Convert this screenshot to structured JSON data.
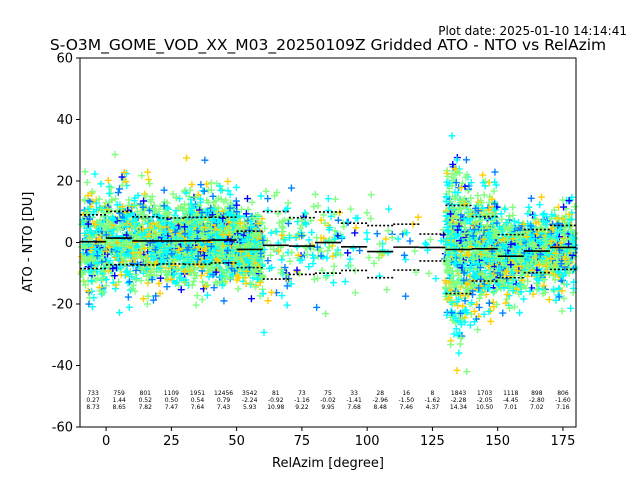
{
  "plot_date": "Plot date: 2025-01-10 14:14:41",
  "chart_data": {
    "type": "scatter",
    "title": "S-O3M_GOME_VOD_XX_M03_20250109Z Gridded ATO - NTO vs RelAzim",
    "xlabel": "RelAzim [degree]",
    "ylabel": "ATO - NTO [DU]",
    "xlim": [
      -10,
      180
    ],
    "ylim": [
      -60,
      60
    ],
    "xticks": [
      0,
      25,
      50,
      75,
      100,
      125,
      150,
      175
    ],
    "yticks": [
      -60,
      -40,
      -20,
      0,
      20,
      40,
      60
    ],
    "grid": false,
    "marker": "+",
    "colors": {
      "dark_blue": "#0000ff",
      "blue": "#0080ff",
      "cyan": "#00ffff",
      "green": "#80ff80",
      "yellow": "#ffd000",
      "black": "#000000"
    },
    "bins": [
      {
        "x": -5,
        "count": "733",
        "mean": "0.27",
        "std": "8.73"
      },
      {
        "x": 5,
        "count": "759",
        "mean": "1.44",
        "std": "8.65"
      },
      {
        "x": 15,
        "count": "801",
        "mean": "0.52",
        "std": "7.82"
      },
      {
        "x": 25,
        "count": "1109",
        "mean": "0.50",
        "std": "7.47"
      },
      {
        "x": 35,
        "count": "1951",
        "mean": "0.54",
        "std": "7.64"
      },
      {
        "x": 45,
        "count": "12456",
        "mean": "0.79",
        "std": "7.43"
      },
      {
        "x": 55,
        "count": "3542",
        "mean": "-2.24",
        "std": "5.93"
      },
      {
        "x": 65,
        "count": "81",
        "mean": "-0.92",
        "std": "10.98"
      },
      {
        "x": 75,
        "count": "73",
        "mean": "-1.16",
        "std": "9.22"
      },
      {
        "x": 85,
        "count": "75",
        "mean": "-0.02",
        "std": "9.95"
      },
      {
        "x": 95,
        "count": "33",
        "mean": "-1.41",
        "std": "7.68"
      },
      {
        "x": 105,
        "count": "28",
        "mean": "-2.96",
        "std": "8.48"
      },
      {
        "x": 115,
        "count": "16",
        "mean": "-1.50",
        "std": "7.46"
      },
      {
        "x": 125,
        "count": "8",
        "mean": "-1.62",
        "std": "4.37"
      },
      {
        "x": 135,
        "count": "1843",
        "mean": "-2.28",
        "std": "14.34"
      },
      {
        "x": 145,
        "count": "1703",
        "mean": "-2.05",
        "std": "10.50"
      },
      {
        "x": 155,
        "count": "1118",
        "mean": "-4.45",
        "std": "7.01"
      },
      {
        "x": 165,
        "count": "898",
        "mean": "-2.80",
        "std": "7.02"
      },
      {
        "x": 175,
        "count": "806",
        "mean": "-1.60",
        "std": "7.16"
      }
    ]
  }
}
